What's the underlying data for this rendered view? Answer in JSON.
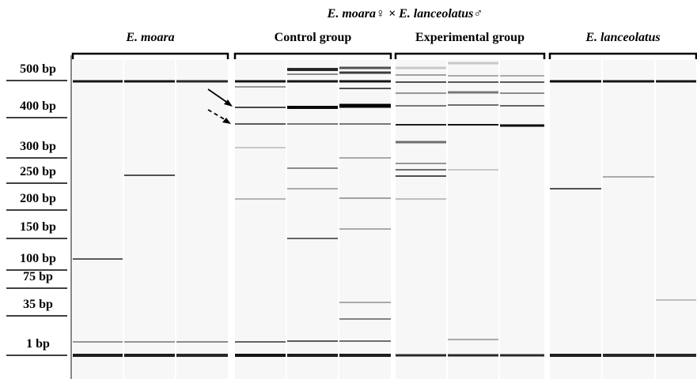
{
  "title": "E. moara♀ × E. lanceolatus♂",
  "groups": [
    "E. moara",
    "Control group",
    "Experimental group",
    "E. lanceolatus"
  ],
  "markers": [
    "500 bp",
    "400 bp",
    "300 bp",
    "250 bp",
    "200 bp",
    "150 bp",
    "100 bp",
    "75 bp",
    "35 bp",
    "1 bp"
  ]
}
